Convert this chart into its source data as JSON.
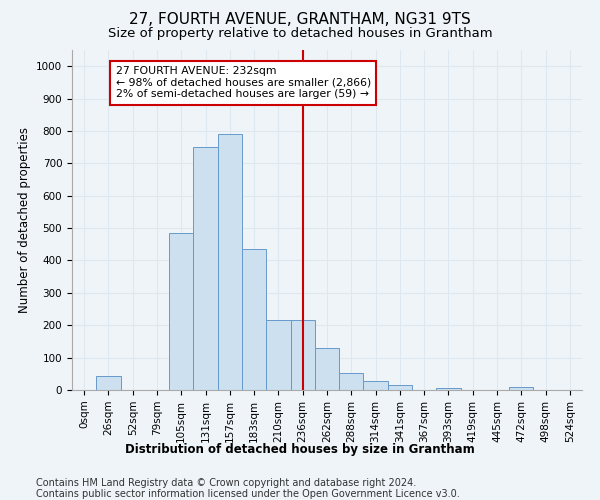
{
  "title": "27, FOURTH AVENUE, GRANTHAM, NG31 9TS",
  "subtitle": "Size of property relative to detached houses in Grantham",
  "xlabel": "Distribution of detached houses by size in Grantham",
  "ylabel": "Number of detached properties",
  "bin_labels": [
    "0sqm",
    "26sqm",
    "52sqm",
    "79sqm",
    "105sqm",
    "131sqm",
    "157sqm",
    "183sqm",
    "210sqm",
    "236sqm",
    "262sqm",
    "288sqm",
    "314sqm",
    "341sqm",
    "367sqm",
    "393sqm",
    "419sqm",
    "445sqm",
    "472sqm",
    "498sqm",
    "524sqm"
  ],
  "bar_heights": [
    0,
    43,
    0,
    0,
    485,
    750,
    790,
    435,
    215,
    215,
    130,
    52,
    27,
    15,
    0,
    7,
    0,
    0,
    8,
    0,
    0
  ],
  "bar_color": "#cce0f0",
  "bar_edge_color": "#6699cc",
  "grid_color": "#dde8f0",
  "vline_x": 9,
  "vline_color": "#cc0000",
  "annotation_text": "27 FOURTH AVENUE: 232sqm\n← 98% of detached houses are smaller (2,866)\n2% of semi-detached houses are larger (59) →",
  "annotation_box_color": "#cc0000",
  "ylim": [
    0,
    1050
  ],
  "yticks": [
    0,
    100,
    200,
    300,
    400,
    500,
    600,
    700,
    800,
    900,
    1000
  ],
  "footer_text": "Contains HM Land Registry data © Crown copyright and database right 2024.\nContains public sector information licensed under the Open Government Licence v3.0.",
  "background_color": "#eef4f8",
  "plot_background_color": "#eef4f8",
  "title_fontsize": 11,
  "subtitle_fontsize": 9.5,
  "axis_label_fontsize": 8.5,
  "tick_fontsize": 7.5,
  "footer_fontsize": 7
}
